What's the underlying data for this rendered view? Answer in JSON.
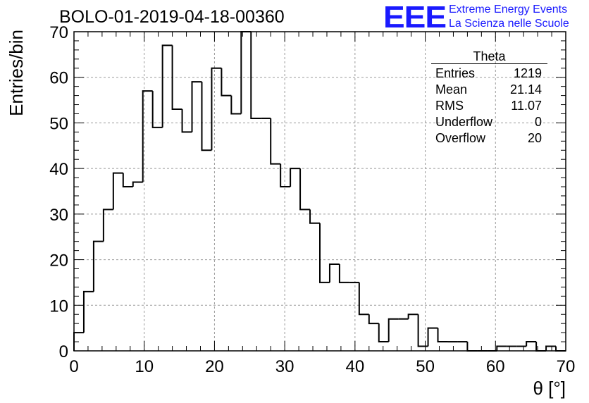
{
  "header": {
    "run_title": "BOLO-01-2019-04-18-00360",
    "logo": "EEE",
    "org_line1": "Extreme Energy Events",
    "org_line2": "La Scienza nelle Scuole",
    "brand_color": "#1a1aff"
  },
  "stats_box": {
    "title": "Theta",
    "rows": [
      {
        "label": "Entries",
        "value": "1219"
      },
      {
        "label": "Mean",
        "value": "21.14"
      },
      {
        "label": "RMS",
        "value": "11.07"
      },
      {
        "label": "Underflow",
        "value": "0"
      },
      {
        "label": "Overflow",
        "value": "20"
      }
    ]
  },
  "chart_data": {
    "type": "bar",
    "style": "step-histogram",
    "title": "",
    "xlabel": "θ [°]",
    "ylabel": "Entries/bin",
    "xlim": [
      0,
      70
    ],
    "ylim": [
      0,
      70
    ],
    "bin_width": 1.4,
    "x_ticks": [
      0,
      10,
      20,
      30,
      40,
      50,
      60,
      70
    ],
    "y_ticks": [
      0,
      10,
      20,
      30,
      40,
      50,
      60,
      70
    ],
    "grid": true,
    "values": [
      4,
      13,
      24,
      31,
      39,
      36,
      37,
      57,
      49,
      67,
      53,
      48,
      59,
      44,
      62,
      56,
      52,
      70,
      51,
      51,
      41,
      36,
      40,
      31,
      28,
      15,
      19,
      15,
      15,
      8,
      6,
      2,
      7,
      7,
      8,
      1,
      5,
      2,
      2,
      2,
      0,
      0,
      0,
      1,
      1,
      1,
      2,
      0,
      1,
      0
    ]
  }
}
